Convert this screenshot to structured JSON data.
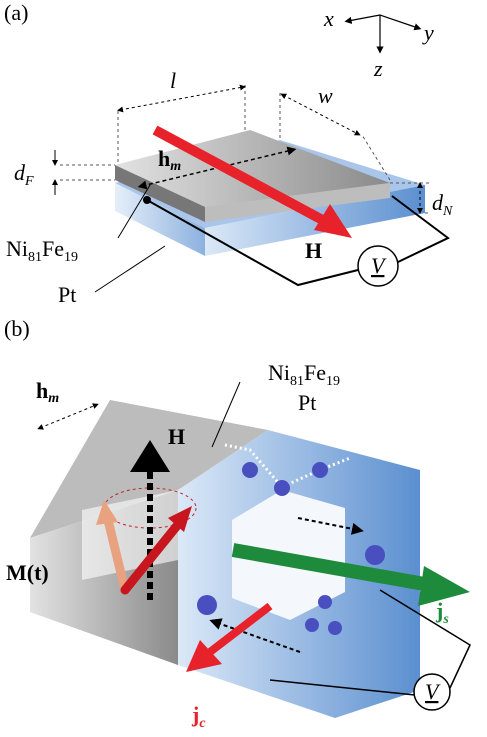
{
  "panel_a": {
    "label": "(a)",
    "axes": {
      "x": "x",
      "y": "y",
      "z": "z"
    },
    "dims": {
      "l": "l",
      "w": "w",
      "d_F": {
        "base": "d",
        "sub": "F"
      },
      "d_N": {
        "base": "d",
        "sub": "N"
      }
    },
    "h_m": {
      "base": "h",
      "sub": "m"
    },
    "field": "H",
    "voltmeter": "V",
    "ferromagnet": [
      "Ni",
      "81",
      "Fe",
      "19"
    ],
    "metal": "Pt"
  },
  "panel_b": {
    "label": "(b)",
    "ferromagnet": [
      "Ni",
      "81",
      "Fe",
      "19"
    ],
    "metal": "Pt",
    "h_m": {
      "base": "h",
      "sub": "m"
    },
    "field": "H",
    "magnetization": "M(t)",
    "spin_current": {
      "base": "j",
      "sub": "s"
    },
    "charge_current": {
      "base": "j",
      "sub": "c"
    },
    "voltmeter": "V"
  }
}
